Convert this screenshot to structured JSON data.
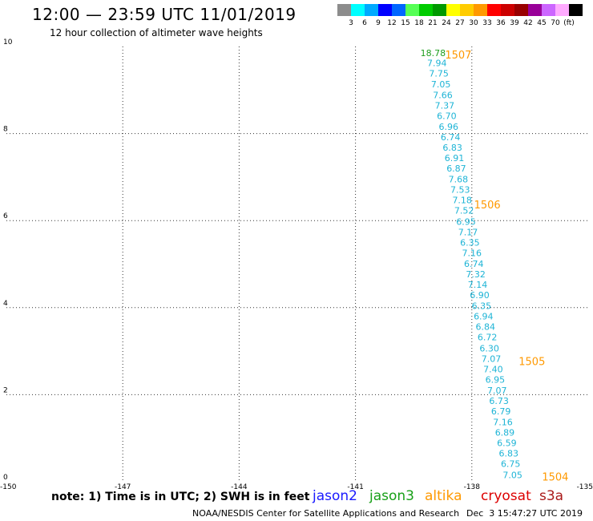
{
  "header": {
    "title": "12:00 — 23:59 UTC 11/01/2019",
    "subtitle": "12 hour collection of altimeter wave heights"
  },
  "colorbar": {
    "colors": [
      "#8c8c8c",
      "#00ffff",
      "#00aaff",
      "#0000ff",
      "#0066ff",
      "#55ff55",
      "#00cc00",
      "#009900",
      "#ffff00",
      "#ffcc00",
      "#ff9900",
      "#ff0000",
      "#cc0000",
      "#990000",
      "#990099",
      "#cc66ff",
      "#ffaaff",
      "#000000"
    ],
    "ticks": [
      "3",
      "6",
      "9",
      "12",
      "15",
      "18",
      "21",
      "24",
      "27",
      "30",
      "33",
      "36",
      "39",
      "42",
      "45",
      "70",
      "(ft)"
    ]
  },
  "chart_data": {
    "type": "scatter",
    "title": "12 hour collection of altimeter wave heights",
    "xlim": [
      -150,
      -135
    ],
    "ylim": [
      0,
      10
    ],
    "x_ticks": [
      "-150",
      "-147",
      "-144",
      "-141",
      "-138",
      "-135"
    ],
    "y_ticks": [
      "0",
      "2",
      "4",
      "6",
      "8",
      "10"
    ],
    "grid": true,
    "series": [
      {
        "name": "jason3",
        "color": "#1f9e1f",
        "points": [
          {
            "x": -139.0,
            "y": 9.85,
            "label": "18.78"
          }
        ]
      },
      {
        "name": "cryosat",
        "color": "#1eb4d6",
        "points": [
          {
            "x": -138.9,
            "y": 9.62,
            "label": "7.94"
          },
          {
            "x": -138.85,
            "y": 9.38,
            "label": "7.75"
          },
          {
            "x": -138.8,
            "y": 9.13,
            "label": "7.05"
          },
          {
            "x": -138.75,
            "y": 8.89,
            "label": "7.66"
          },
          {
            "x": -138.7,
            "y": 8.65,
            "label": "7.37"
          },
          {
            "x": -138.65,
            "y": 8.41,
            "label": "6.70"
          },
          {
            "x": -138.6,
            "y": 8.16,
            "label": "6.96"
          },
          {
            "x": -138.55,
            "y": 7.92,
            "label": "6.74"
          },
          {
            "x": -138.5,
            "y": 7.68,
            "label": "6.83"
          },
          {
            "x": -138.45,
            "y": 7.44,
            "label": "6.91"
          },
          {
            "x": -138.4,
            "y": 7.2,
            "label": "6.87"
          },
          {
            "x": -138.35,
            "y": 6.95,
            "label": "7.68"
          },
          {
            "x": -138.3,
            "y": 6.71,
            "label": "7.53"
          },
          {
            "x": -138.25,
            "y": 6.47,
            "label": "7.18"
          },
          {
            "x": -138.2,
            "y": 6.23,
            "label": "7.52"
          },
          {
            "x": -138.15,
            "y": 5.98,
            "label": "6.95"
          },
          {
            "x": -138.1,
            "y": 5.74,
            "label": "7.17"
          },
          {
            "x": -138.05,
            "y": 5.5,
            "label": "6.35"
          },
          {
            "x": -138.0,
            "y": 5.26,
            "label": "7.16"
          },
          {
            "x": -137.95,
            "y": 5.01,
            "label": "6.74"
          },
          {
            "x": -137.9,
            "y": 4.77,
            "label": "7.32"
          },
          {
            "x": -137.85,
            "y": 4.53,
            "label": "7.14"
          },
          {
            "x": -137.8,
            "y": 4.29,
            "label": "6.90"
          },
          {
            "x": -137.75,
            "y": 4.04,
            "label": "6.35"
          },
          {
            "x": -137.7,
            "y": 3.8,
            "label": "6.94"
          },
          {
            "x": -137.65,
            "y": 3.56,
            "label": "6.84"
          },
          {
            "x": -137.6,
            "y": 3.32,
            "label": "6.72"
          },
          {
            "x": -137.55,
            "y": 3.07,
            "label": "6.30"
          },
          {
            "x": -137.5,
            "y": 2.83,
            "label": "7.07"
          },
          {
            "x": -137.45,
            "y": 2.59,
            "label": "7.40"
          },
          {
            "x": -137.4,
            "y": 2.35,
            "label": "6.95"
          },
          {
            "x": -137.35,
            "y": 2.1,
            "label": "7.07"
          },
          {
            "x": -137.3,
            "y": 1.86,
            "label": "6.73"
          },
          {
            "x": -137.25,
            "y": 1.62,
            "label": "6.79"
          },
          {
            "x": -137.2,
            "y": 1.37,
            "label": "7.16"
          },
          {
            "x": -137.15,
            "y": 1.13,
            "label": "6.89"
          },
          {
            "x": -137.1,
            "y": 0.89,
            "label": "6.59"
          },
          {
            "x": -137.05,
            "y": 0.65,
            "label": "6.83"
          },
          {
            "x": -137.0,
            "y": 0.41,
            "label": "6.75"
          },
          {
            "x": -136.95,
            "y": 0.16,
            "label": "7.05"
          }
        ]
      }
    ],
    "annotations": [
      {
        "text": "1507",
        "x": -138.35,
        "y": 9.8
      },
      {
        "text": "1506",
        "x": -137.6,
        "y": 6.35
      },
      {
        "text": "1505",
        "x": -136.45,
        "y": 2.75
      },
      {
        "text": "1504",
        "x": -135.85,
        "y": 0.1
      }
    ],
    "annotation_color": "#ff9900"
  },
  "note": "note: 1) Time is in UTC; 2) SWH is in feet",
  "missions": [
    {
      "label": "jason2",
      "color": "#1a1aff"
    },
    {
      "label": "jason3",
      "color": "#18a018"
    },
    {
      "label": "altika",
      "color": "#ff9900"
    },
    {
      "label": "cryosat",
      "color": "#dd0000"
    },
    {
      "label": "s3a",
      "color": "#aa1a1a"
    }
  ],
  "footer": {
    "credit": "NOAA/NESDIS Center for Satellite Applications and Research",
    "timestamp": "Dec  3 15:47:27 UTC 2019"
  }
}
